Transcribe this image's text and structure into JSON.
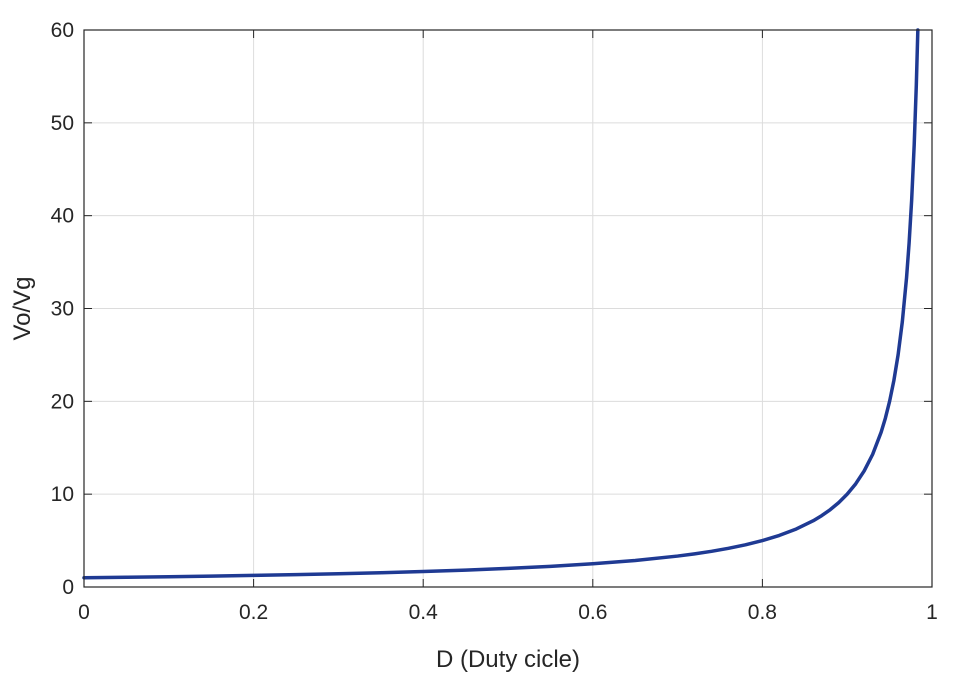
{
  "chart_data": {
    "type": "line",
    "title": "",
    "xlabel": "D (Duty cicle)",
    "ylabel": "Vo/Vg",
    "xlim": [
      0,
      1
    ],
    "ylim": [
      0,
      60
    ],
    "x_ticks": [
      0,
      0.2,
      0.4,
      0.6,
      0.8,
      1
    ],
    "y_ticks": [
      0,
      10,
      20,
      30,
      40,
      50,
      60
    ],
    "x_tick_labels": [
      "0",
      "0.2",
      "0.4",
      "0.6",
      "0.8",
      "1"
    ],
    "y_tick_labels": [
      "0",
      "10",
      "20",
      "30",
      "40",
      "50",
      "60"
    ],
    "grid": true,
    "legend": "none",
    "series": [
      {
        "color": "#1f3a93",
        "x": [
          0,
          0.05,
          0.1,
          0.15,
          0.2,
          0.25,
          0.3,
          0.35,
          0.4,
          0.45,
          0.5,
          0.55,
          0.6,
          0.65,
          0.7,
          0.72,
          0.74,
          0.76,
          0.78,
          0.8,
          0.82,
          0.84,
          0.86,
          0.87,
          0.88,
          0.89,
          0.9,
          0.91,
          0.92,
          0.93,
          0.94,
          0.945,
          0.95,
          0.955,
          0.96,
          0.965,
          0.97,
          0.973,
          0.976,
          0.979,
          0.9815,
          0.9833
        ],
        "y": [
          1,
          1.053,
          1.111,
          1.176,
          1.25,
          1.333,
          1.429,
          1.538,
          1.667,
          1.818,
          2,
          2.222,
          2.5,
          2.857,
          3.333,
          3.571,
          3.846,
          4.167,
          4.545,
          5,
          5.556,
          6.25,
          7.143,
          7.692,
          8.333,
          9.091,
          10,
          11.111,
          12.5,
          14.286,
          16.667,
          18.182,
          20,
          22.222,
          25,
          28.571,
          33.333,
          37.037,
          41.667,
          47.619,
          54.054,
          60
        ]
      }
    ]
  }
}
